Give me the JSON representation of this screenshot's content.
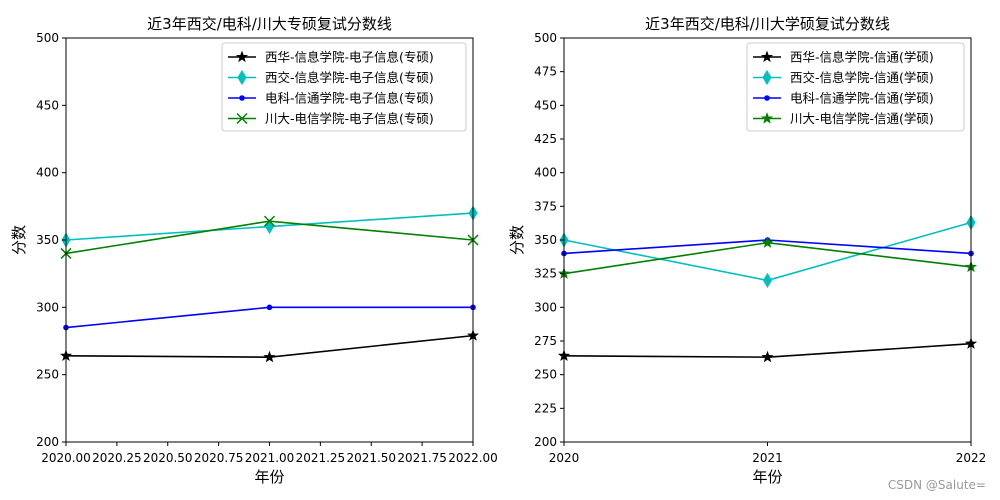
{
  "watermark": "CSDN @Salute=",
  "colors": {
    "axis": "#000000",
    "legend_border": "#cccccc",
    "background": "#ffffff"
  },
  "chart_data": [
    {
      "type": "line",
      "title": "近3年西交/电科/川大专硕复试分数线",
      "xlabel": "年份",
      "ylabel": "分数",
      "xlim": [
        2020,
        2022
      ],
      "ylim": [
        200,
        500
      ],
      "xticks": [
        2020,
        2020.25,
        2020.5,
        2020.75,
        2021,
        2021.25,
        2021.5,
        2021.75,
        2022
      ],
      "xtick_labels": [
        "2020.00",
        "2020.25",
        "2020.50",
        "2020.75",
        "2021.00",
        "2021.25",
        "2021.50",
        "2021.75",
        "2022.00"
      ],
      "yticks": [
        200,
        250,
        300,
        350,
        400,
        450,
        500
      ],
      "ytick_labels": [
        "200",
        "250",
        "300",
        "350",
        "400",
        "450",
        "500"
      ],
      "x": [
        2020,
        2021,
        2022
      ],
      "legend_position": "top-right",
      "grid": false,
      "series": [
        {
          "name": "西华-信息学院-电子信息(专硕)",
          "values": [
            264,
            263,
            279
          ],
          "color": "#000000",
          "marker": "star"
        },
        {
          "name": "西交-信息学院-电子信息(专硕)",
          "values": [
            350,
            360,
            370
          ],
          "color": "#00bfbf",
          "marker": "thin_diamond"
        },
        {
          "name": "电科-信通学院-电子信息(专硕)",
          "values": [
            285,
            300,
            300
          ],
          "color": "#0000ff",
          "marker": "point"
        },
        {
          "name": "川大-电信学院-电子信息(专硕)",
          "values": [
            340,
            364,
            350
          ],
          "color": "#008000",
          "marker": "x"
        }
      ]
    },
    {
      "type": "line",
      "title": "近3年西交/电科/川大学硕复试分数线",
      "xlabel": "年份",
      "ylabel": "分数",
      "xlim": [
        2020,
        2022
      ],
      "ylim": [
        200,
        500
      ],
      "xticks": [
        2020,
        2021,
        2022
      ],
      "xtick_labels": [
        "2020",
        "2021",
        "2022"
      ],
      "yticks": [
        200,
        225,
        250,
        275,
        300,
        325,
        350,
        375,
        400,
        425,
        450,
        475,
        500
      ],
      "ytick_labels": [
        "200",
        "225",
        "250",
        "275",
        "300",
        "325",
        "350",
        "375",
        "400",
        "425",
        "450",
        "475",
        "500"
      ],
      "x": [
        2020,
        2021,
        2022
      ],
      "legend_position": "top-right",
      "grid": false,
      "series": [
        {
          "name": "西华-信息学院-信通(学硕)",
          "values": [
            264,
            263,
            273
          ],
          "color": "#000000",
          "marker": "star"
        },
        {
          "name": "西交-信息学院-信通(学硕)",
          "values": [
            350,
            320,
            363
          ],
          "color": "#00bfbf",
          "marker": "thin_diamond"
        },
        {
          "name": "电科-信通学院-信通(学硕)",
          "values": [
            340,
            350,
            340
          ],
          "color": "#0000ff",
          "marker": "point"
        },
        {
          "name": "川大-电信学院-信通(学硕)",
          "values": [
            325,
            348,
            330
          ],
          "color": "#008000",
          "marker": "star"
        }
      ]
    }
  ]
}
